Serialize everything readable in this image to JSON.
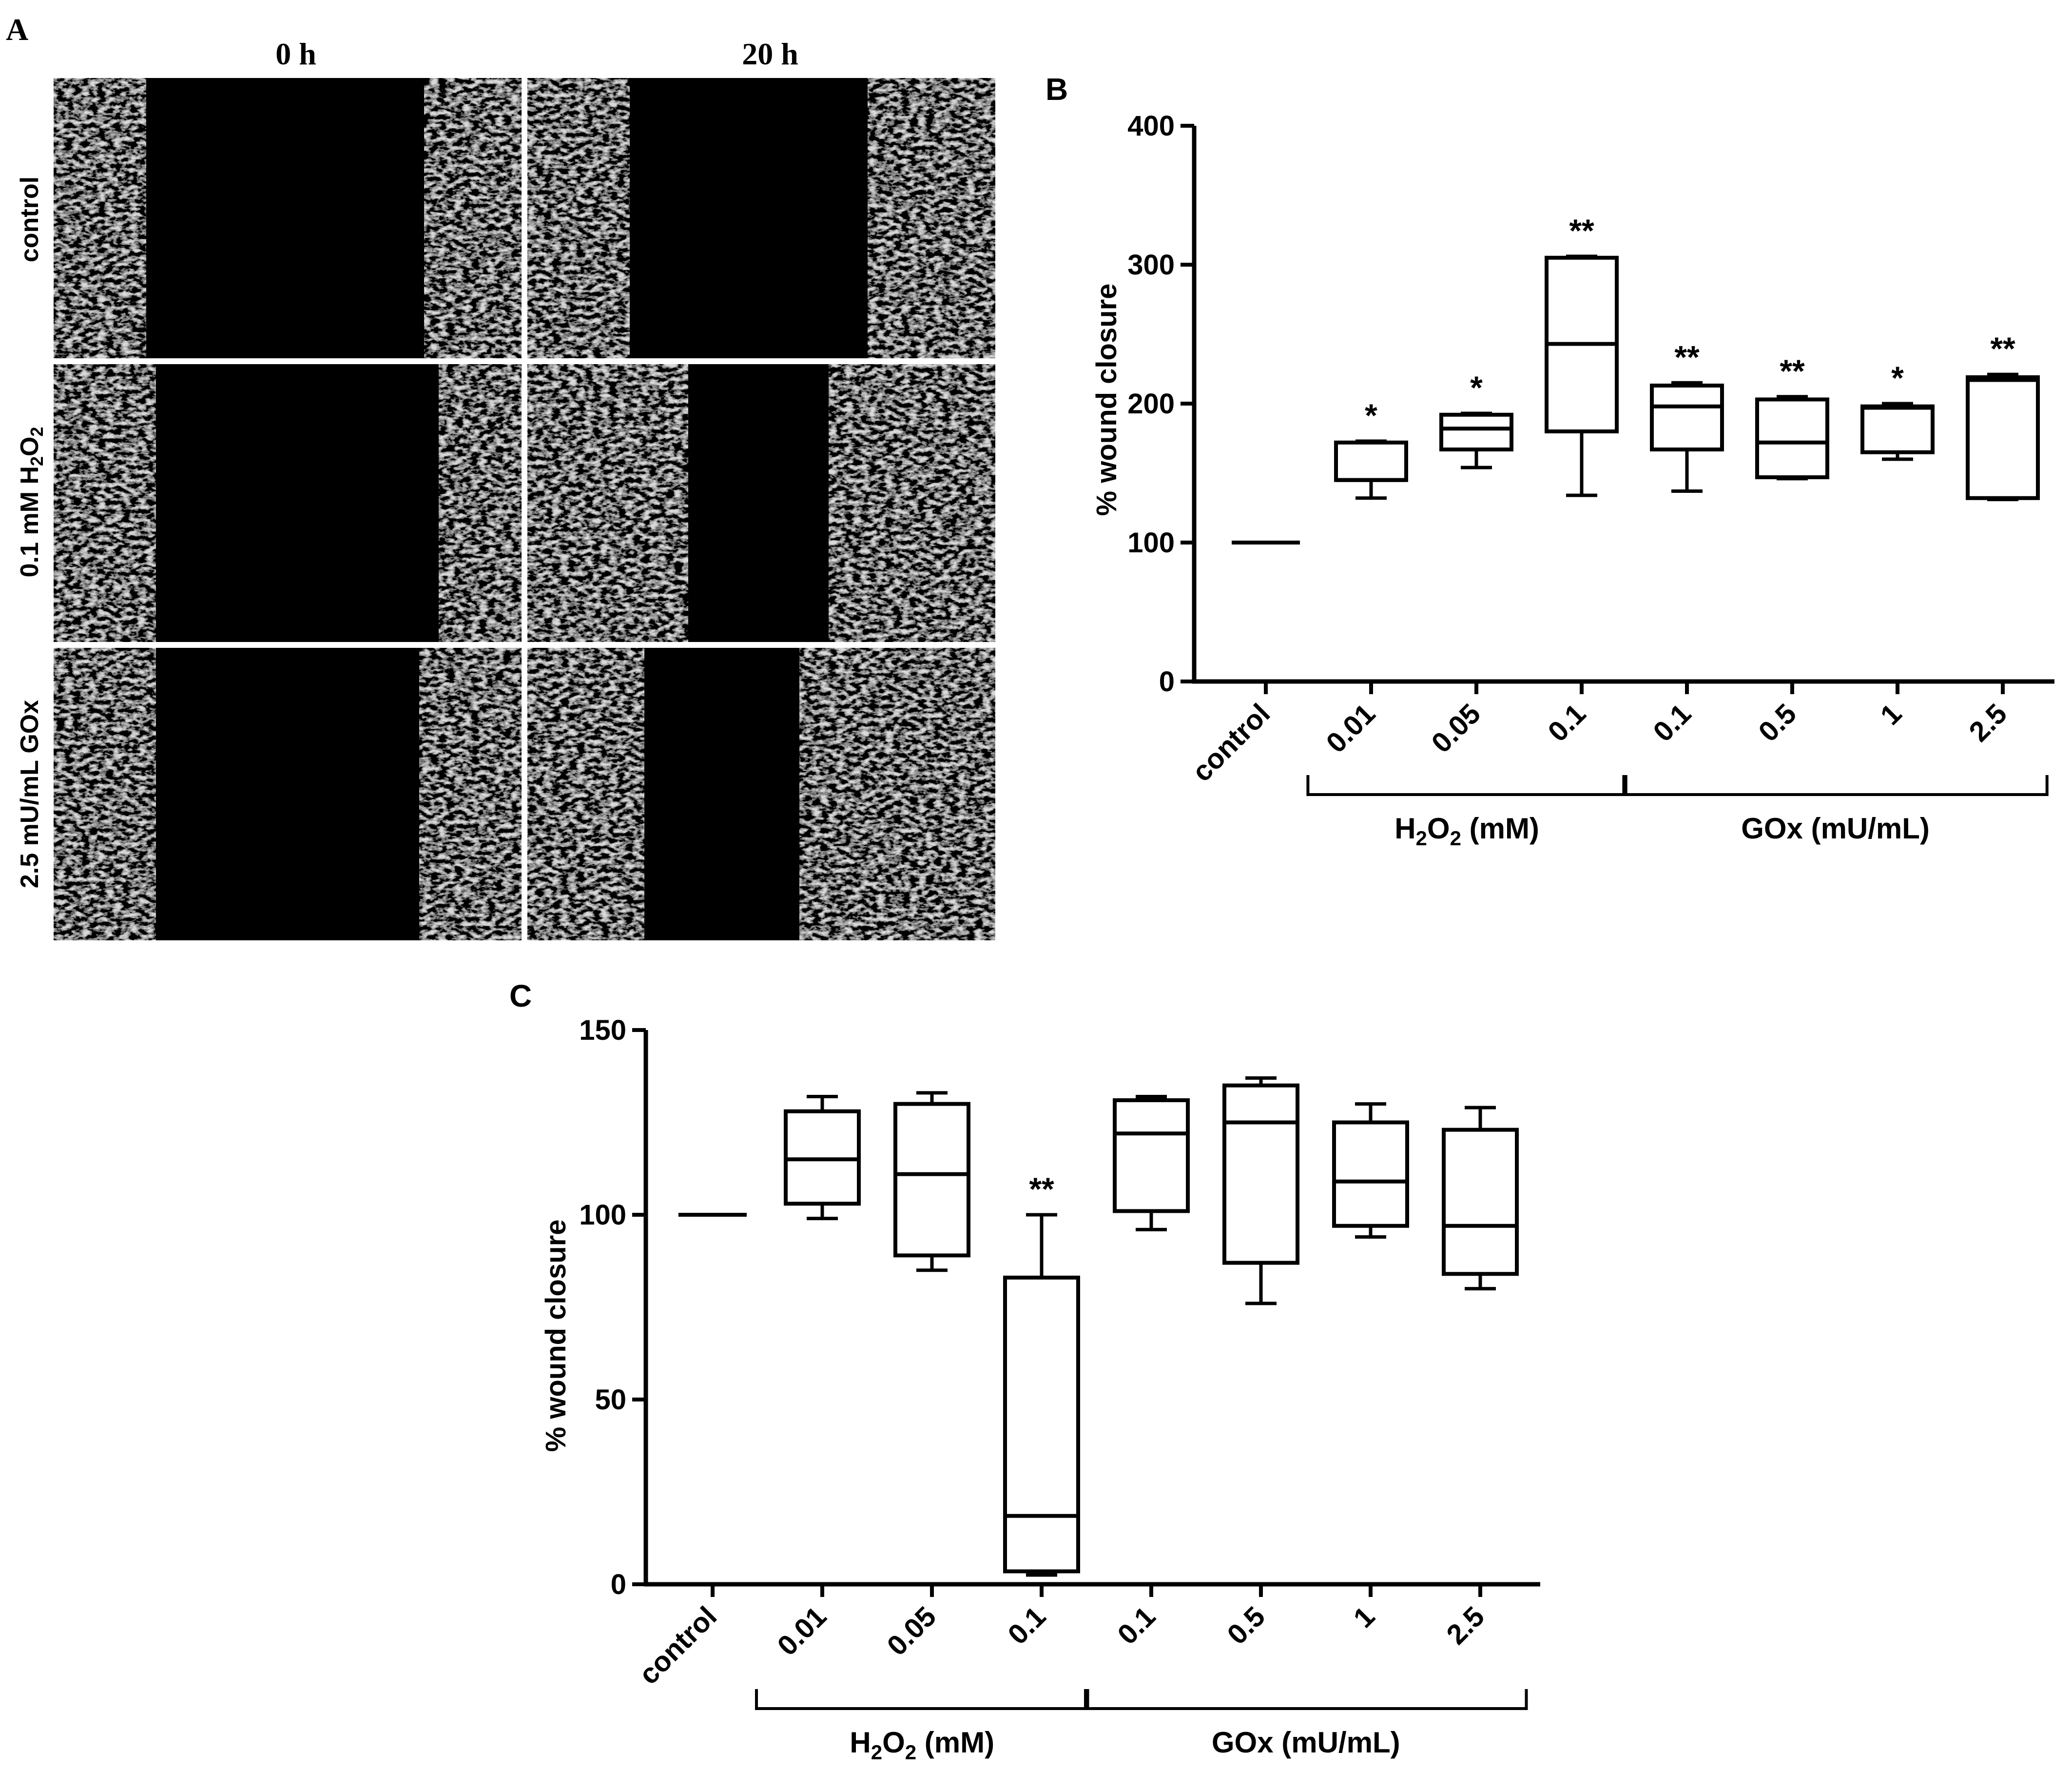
{
  "panel_a": {
    "label": "A",
    "time_labels": [
      "0 h",
      "20 h"
    ],
    "row_labels": [
      {
        "base": "control",
        "sub": "",
        "tail": ""
      },
      {
        "base": "0.1 mM H",
        "sub": "2",
        "mid": "O",
        "sub2": "2"
      },
      {
        "base": "2.5 mU/mL GOx",
        "sub": "",
        "tail": ""
      }
    ]
  },
  "chart_data": [
    {
      "panel_label": "B",
      "type": "box",
      "ylabel": "% wound closure",
      "ylim": [
        0,
        400
      ],
      "yticks": [
        0,
        100,
        200,
        300,
        400
      ],
      "categories": [
        "control",
        "0.01",
        "0.05",
        "0.1",
        "0.1",
        "0.5",
        "1",
        "2.5"
      ],
      "groups": [
        {
          "label_base": "H",
          "label_sub": "2",
          "label_mid": "O",
          "label_sub2": "2",
          "label_tail": " (mM)",
          "start": 1,
          "end": 3
        },
        {
          "label_base": "GOx (mU/mL)",
          "start": 4,
          "end": 7
        }
      ],
      "boxes": [
        {
          "min": 100,
          "q1": 100,
          "median": 100,
          "q3": 100,
          "max": 100,
          "sig": ""
        },
        {
          "min": 132,
          "q1": 145,
          "median": 145,
          "q3": 172,
          "max": 173,
          "sig": "*"
        },
        {
          "min": 154,
          "q1": 167,
          "median": 182,
          "q3": 192,
          "max": 193,
          "sig": "*"
        },
        {
          "min": 134,
          "q1": 180,
          "median": 243,
          "q3": 305,
          "max": 306,
          "sig": "**"
        },
        {
          "min": 137,
          "q1": 167,
          "median": 198,
          "q3": 213,
          "max": 215,
          "sig": "**"
        },
        {
          "min": 146,
          "q1": 147,
          "median": 172,
          "q3": 203,
          "max": 205,
          "sig": "**"
        },
        {
          "min": 160,
          "q1": 165,
          "median": 197,
          "q3": 198,
          "max": 200,
          "sig": "*"
        },
        {
          "min": 131,
          "q1": 132,
          "median": 217,
          "q3": 219,
          "max": 221,
          "sig": "**"
        }
      ]
    },
    {
      "panel_label": "C",
      "type": "box",
      "ylabel": "% wound closure",
      "ylim": [
        0,
        150
      ],
      "yticks": [
        0,
        50,
        100,
        150
      ],
      "categories": [
        "control",
        "0.01",
        "0.05",
        "0.1",
        "0.1",
        "0.5",
        "1",
        "2.5"
      ],
      "groups": [
        {
          "label_base": "H",
          "label_sub": "2",
          "label_mid": "O",
          "label_sub2": "2",
          "label_tail": " (mM)",
          "start": 1,
          "end": 3
        },
        {
          "label_base": "GOx (mU/mL)",
          "start": 4,
          "end": 7
        }
      ],
      "boxes": [
        {
          "min": 100,
          "q1": 100,
          "median": 100,
          "q3": 100,
          "max": 100,
          "sig": ""
        },
        {
          "min": 99,
          "q1": 103,
          "median": 115,
          "q3": 128,
          "max": 132,
          "sig": ""
        },
        {
          "min": 85,
          "q1": 89,
          "median": 111,
          "q3": 130,
          "max": 133,
          "sig": ""
        },
        {
          "min": 2.5,
          "q1": 3.5,
          "median": 18.5,
          "q3": 83,
          "max": 100,
          "sig": "**"
        },
        {
          "min": 96,
          "q1": 101,
          "median": 122,
          "q3": 131,
          "max": 132,
          "sig": ""
        },
        {
          "min": 76,
          "q1": 87,
          "median": 125,
          "q3": 135,
          "max": 137,
          "sig": ""
        },
        {
          "min": 94,
          "q1": 97,
          "median": 109,
          "q3": 125,
          "max": 130,
          "sig": ""
        },
        {
          "min": 80,
          "q1": 84,
          "median": 97,
          "q3": 123,
          "max": 129,
          "sig": ""
        }
      ]
    }
  ]
}
